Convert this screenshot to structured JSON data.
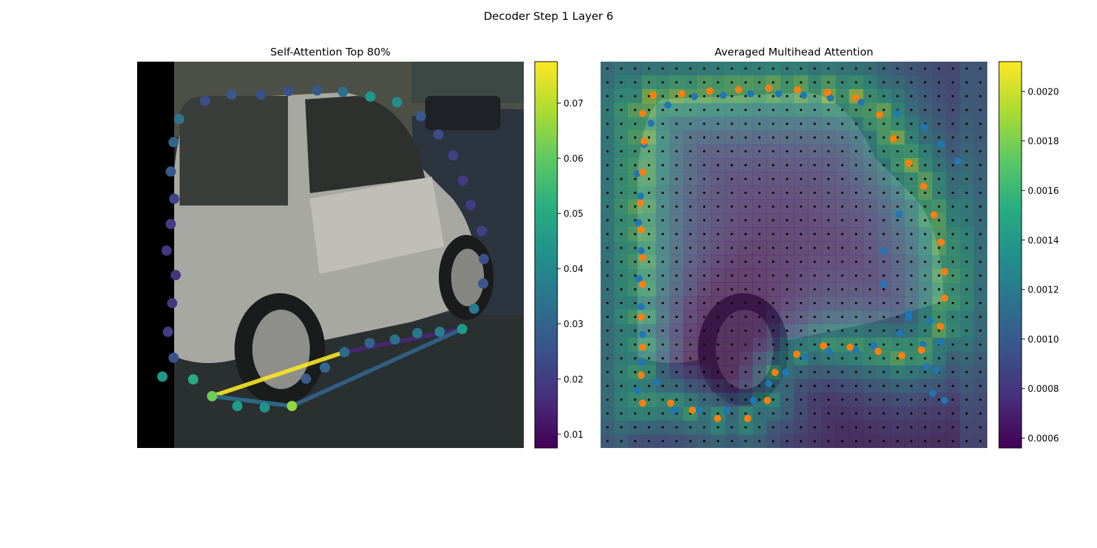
{
  "figure": {
    "suptitle": "Decoder Step 1 Layer 6"
  },
  "chart_data": [
    {
      "type": "scatter",
      "title": "Self-Attention Top 80%",
      "xlabel": "",
      "ylabel": "",
      "background": "photo of a silver hatchback car",
      "colormap": "viridis",
      "colorbar": {
        "range": [
          0.0075,
          0.0775
        ],
        "ticks": [
          "0.01",
          "0.02",
          "0.03",
          "0.04",
          "0.05",
          "0.06",
          "0.07"
        ]
      },
      "points": [
        {
          "x": 36,
          "y": 450,
          "v": 0.045
        },
        {
          "x": 52,
          "y": 423,
          "v": 0.025
        },
        {
          "x": 44,
          "y": 386,
          "v": 0.02
        },
        {
          "x": 50,
          "y": 345,
          "v": 0.018
        },
        {
          "x": 55,
          "y": 305,
          "v": 0.018
        },
        {
          "x": 42,
          "y": 270,
          "v": 0.019
        },
        {
          "x": 48,
          "y": 232,
          "v": 0.02
        },
        {
          "x": 53,
          "y": 196,
          "v": 0.022
        },
        {
          "x": 48,
          "y": 157,
          "v": 0.027
        },
        {
          "x": 52,
          "y": 115,
          "v": 0.03
        },
        {
          "x": 60,
          "y": 82,
          "v": 0.034
        },
        {
          "x": 97,
          "y": 56,
          "v": 0.024
        },
        {
          "x": 135,
          "y": 47,
          "v": 0.027
        },
        {
          "x": 177,
          "y": 47,
          "v": 0.025
        },
        {
          "x": 216,
          "y": 42,
          "v": 0.025
        },
        {
          "x": 257,
          "y": 41,
          "v": 0.027
        },
        {
          "x": 294,
          "y": 43,
          "v": 0.033
        },
        {
          "x": 333,
          "y": 50,
          "v": 0.045
        },
        {
          "x": 371,
          "y": 58,
          "v": 0.042
        },
        {
          "x": 405,
          "y": 78,
          "v": 0.027
        },
        {
          "x": 430,
          "y": 104,
          "v": 0.024
        },
        {
          "x": 451,
          "y": 134,
          "v": 0.021
        },
        {
          "x": 465,
          "y": 170,
          "v": 0.02
        },
        {
          "x": 476,
          "y": 205,
          "v": 0.02
        },
        {
          "x": 492,
          "y": 242,
          "v": 0.021
        },
        {
          "x": 495,
          "y": 282,
          "v": 0.025
        },
        {
          "x": 494,
          "y": 317,
          "v": 0.026
        },
        {
          "x": 481,
          "y": 353,
          "v": 0.036
        },
        {
          "x": 464,
          "y": 382,
          "v": 0.045
        },
        {
          "x": 432,
          "y": 386,
          "v": 0.037
        },
        {
          "x": 400,
          "y": 388,
          "v": 0.035
        },
        {
          "x": 368,
          "y": 397,
          "v": 0.033
        },
        {
          "x": 332,
          "y": 402,
          "v": 0.03
        },
        {
          "x": 296,
          "y": 415,
          "v": 0.031
        },
        {
          "x": 268,
          "y": 437,
          "v": 0.031
        },
        {
          "x": 241,
          "y": 453,
          "v": 0.028
        },
        {
          "x": 80,
          "y": 454,
          "v": 0.05
        },
        {
          "x": 107,
          "y": 478,
          "v": 0.062
        },
        {
          "x": 143,
          "y": 492,
          "v": 0.046
        },
        {
          "x": 182,
          "y": 494,
          "v": 0.043
        },
        {
          "x": 221,
          "y": 492,
          "v": 0.066
        }
      ],
      "lines": [
        {
          "from": [
            107,
            478
          ],
          "to": [
            296,
            415
          ],
          "v": 0.077
        },
        {
          "from": [
            296,
            415
          ],
          "to": [
            464,
            382
          ],
          "v": 0.015
        },
        {
          "from": [
            221,
            492
          ],
          "to": [
            464,
            382
          ],
          "v": 0.03
        },
        {
          "from": [
            107,
            478
          ],
          "to": [
            221,
            492
          ],
          "v": 0.033
        }
      ]
    },
    {
      "type": "heatmap",
      "title": "Averaged Multihead Attention",
      "xlabel": "",
      "ylabel": "",
      "background": "photo of a silver hatchback car",
      "colormap": "viridis",
      "colorbar": {
        "range": [
          0.00056,
          0.00212
        ],
        "ticks": [
          "0.0006",
          "0.0008",
          "0.0010",
          "0.0012",
          "0.0014",
          "0.0016",
          "0.0018",
          "0.0020"
        ]
      },
      "grid": {
        "cols": 28,
        "rows": 28,
        "xrange": [
          0,
          552
        ],
        "yrange": [
          0,
          552
        ]
      },
      "series": [
        {
          "color": "#1f77b4",
          "points": [
            [
              52,
              470
            ],
            [
              58,
              430
            ],
            [
              60,
              390
            ],
            [
              58,
              350
            ],
            [
              55,
              310
            ],
            [
              58,
              270
            ],
            [
              54,
              230
            ],
            [
              57,
              192
            ],
            [
              52,
              160
            ],
            [
              62,
              118
            ],
            [
              72,
              88
            ],
            [
              96,
              62
            ],
            [
              134,
              50
            ],
            [
              175,
              48
            ],
            [
              214,
              46
            ],
            [
              254,
              46
            ],
            [
              290,
              48
            ],
            [
              328,
              52
            ],
            [
              372,
              58
            ],
            [
              423,
              74
            ],
            [
              462,
              94
            ],
            [
              486,
              118
            ],
            [
              510,
              142
            ],
            [
              426,
              218
            ],
            [
              404,
              270
            ],
            [
              404,
              318
            ],
            [
              440,
              366
            ],
            [
              460,
              404
            ],
            [
              465,
              436
            ],
            [
              474,
              474
            ],
            [
              491,
              484
            ],
            [
              480,
              440
            ],
            [
              485,
              400
            ],
            [
              470,
              370
            ],
            [
              440,
              360
            ],
            [
              427,
              388
            ],
            [
              390,
              406
            ],
            [
              364,
              412
            ],
            [
              326,
              414
            ],
            [
              291,
              422
            ],
            [
              264,
              444
            ],
            [
              240,
              460
            ],
            [
              218,
              484
            ],
            [
              180,
              498
            ],
            [
              140,
              498
            ],
            [
              105,
              498
            ],
            [
              80,
              458
            ]
          ]
        },
        {
          "color": "#ff7f0e",
          "points": [
            [
              60,
              488
            ],
            [
              58,
              448
            ],
            [
              60,
              408
            ],
            [
              58,
              365
            ],
            [
              60,
              318
            ],
            [
              60,
              280
            ],
            [
              58,
              240
            ],
            [
              57,
              202
            ],
            [
              60,
              158
            ],
            [
              62,
              114
            ],
            [
              60,
              74
            ],
            [
              75,
              48
            ],
            [
              116,
              46
            ],
            [
              156,
              42
            ],
            [
              197,
              40
            ],
            [
              240,
              38
            ],
            [
              281,
              40
            ],
            [
              324,
              44
            ],
            [
              364,
              52
            ],
            [
              398,
              76
            ],
            [
              418,
              110
            ],
            [
              440,
              145
            ],
            [
              461,
              178
            ],
            [
              476,
              219
            ],
            [
              486,
              258
            ],
            [
              491,
              300
            ],
            [
              491,
              338
            ],
            [
              485,
              378
            ],
            [
              458,
              412
            ],
            [
              430,
              420
            ],
            [
              396,
              414
            ],
            [
              356,
              408
            ],
            [
              318,
              406
            ],
            [
              280,
              418
            ],
            [
              249,
              444
            ],
            [
              238,
              484
            ],
            [
              210,
              510
            ],
            [
              167,
              510
            ],
            [
              131,
              498
            ],
            [
              100,
              488
            ]
          ]
        }
      ]
    }
  ]
}
